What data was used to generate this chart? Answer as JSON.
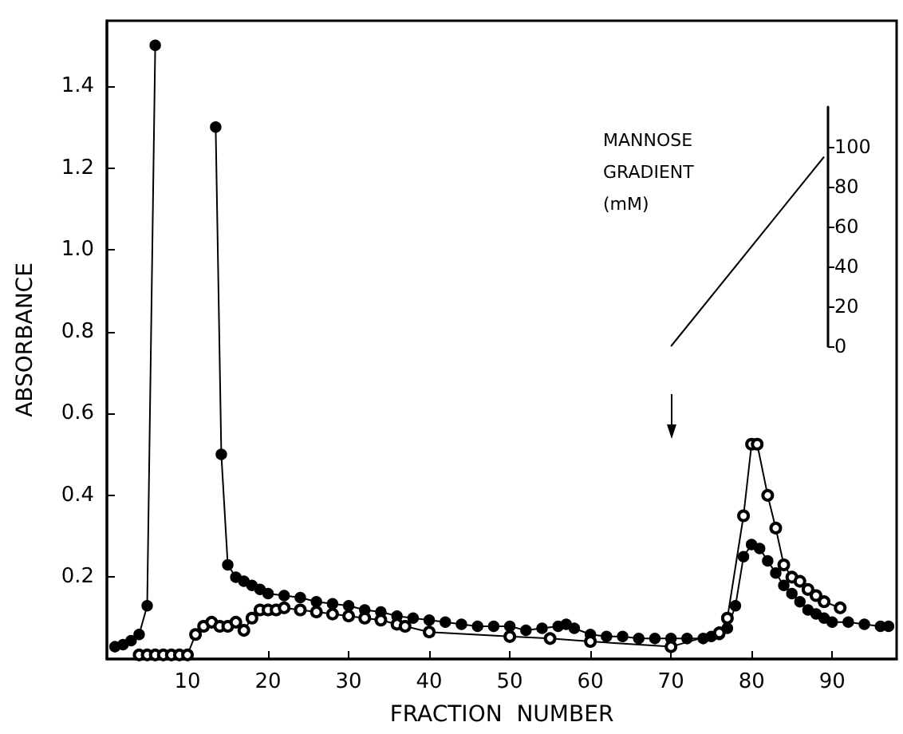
{
  "chart_data": {
    "type": "line",
    "xlabel": "FRACTION  NUMBER",
    "ylabel": "ABSORBANCE",
    "y2label": "MANNOSE GRADIENT (mM)",
    "xlim": [
      0,
      98
    ],
    "xticks": [
      10,
      20,
      30,
      40,
      50,
      60,
      70,
      80,
      90
    ],
    "ylim": [
      0,
      1.56
    ],
    "yticks": [
      0.2,
      0.4,
      0.6,
      0.8,
      {
        "value": 1,
        "label": "1.0"
      },
      1.2,
      1.4
    ],
    "y2lim": [
      0,
      120
    ],
    "y2ticks": [
      0,
      20,
      40,
      60,
      80,
      100
    ],
    "grid": false,
    "line_style": "solid",
    "series": [
      {
        "color": "#000000",
        "marker": "circle",
        "x": [
          1,
          2,
          3,
          4,
          5,
          6,
          7,
          13.5,
          14.2,
          15,
          16,
          17,
          18,
          19,
          20,
          22,
          24,
          26,
          28,
          30,
          32,
          34,
          36,
          38,
          40,
          42,
          44,
          46,
          48,
          50,
          52,
          54,
          56,
          57,
          58,
          60,
          62,
          64,
          66,
          68,
          70,
          72,
          74,
          75,
          76,
          77,
          78,
          79,
          80,
          81,
          82,
          83,
          84,
          85,
          86,
          87,
          88,
          89,
          90,
          92,
          94,
          96,
          97
        ],
        "values": [
          0.03,
          0.035,
          0.045,
          0.06,
          0.13,
          1.5,
          null,
          1.3,
          0.5,
          0.23,
          0.2,
          0.19,
          0.18,
          0.17,
          0.16,
          0.155,
          0.15,
          0.14,
          0.135,
          0.13,
          0.12,
          0.115,
          0.105,
          0.1,
          0.095,
          0.09,
          0.085,
          0.08,
          0.08,
          0.08,
          0.07,
          0.075,
          0.08,
          0.085,
          0.075,
          0.06,
          0.055,
          0.055,
          0.05,
          0.05,
          0.05,
          0.05,
          0.05,
          0.055,
          0.06,
          0.075,
          0.13,
          0.25,
          0.28,
          0.27,
          0.24,
          0.21,
          0.18,
          0.16,
          0.14,
          0.12,
          0.11,
          0.1,
          0.09,
          0.09,
          0.085,
          0.08,
          0.08
        ]
      },
      {
        "color": "#000000",
        "marker": "open circle",
        "x": [
          4,
          5,
          6,
          7,
          8,
          9,
          10,
          11,
          12,
          13,
          14,
          15,
          16,
          17,
          18,
          19,
          20,
          21,
          22,
          24,
          26,
          28,
          30,
          32,
          34,
          36,
          37,
          40,
          50,
          55,
          60,
          70,
          76,
          77,
          79,
          80,
          80.7,
          82,
          83,
          84,
          85,
          86,
          87,
          88,
          89,
          91
        ],
        "values": [
          0.01,
          0.01,
          0.01,
          0.01,
          0.01,
          0.01,
          0.01,
          0.06,
          0.08,
          0.09,
          0.08,
          0.08,
          0.09,
          0.07,
          0.1,
          0.12,
          0.12,
          0.12,
          0.125,
          0.12,
          0.115,
          0.11,
          0.105,
          0.1,
          0.095,
          0.085,
          0.08,
          0.066,
          0.055,
          0.05,
          0.043,
          0.03,
          0.064,
          0.1,
          0.35,
          0.525,
          0.525,
          0.4,
          0.32,
          0.23,
          0.2,
          0.19,
          0.17,
          0.155,
          0.14,
          0.125
        ]
      },
      {
        "color": "#000000",
        "marker": "none",
        "axis": "y2",
        "x": [
          70,
          89
        ],
        "values": [
          0,
          95
        ]
      }
    ]
  }
}
